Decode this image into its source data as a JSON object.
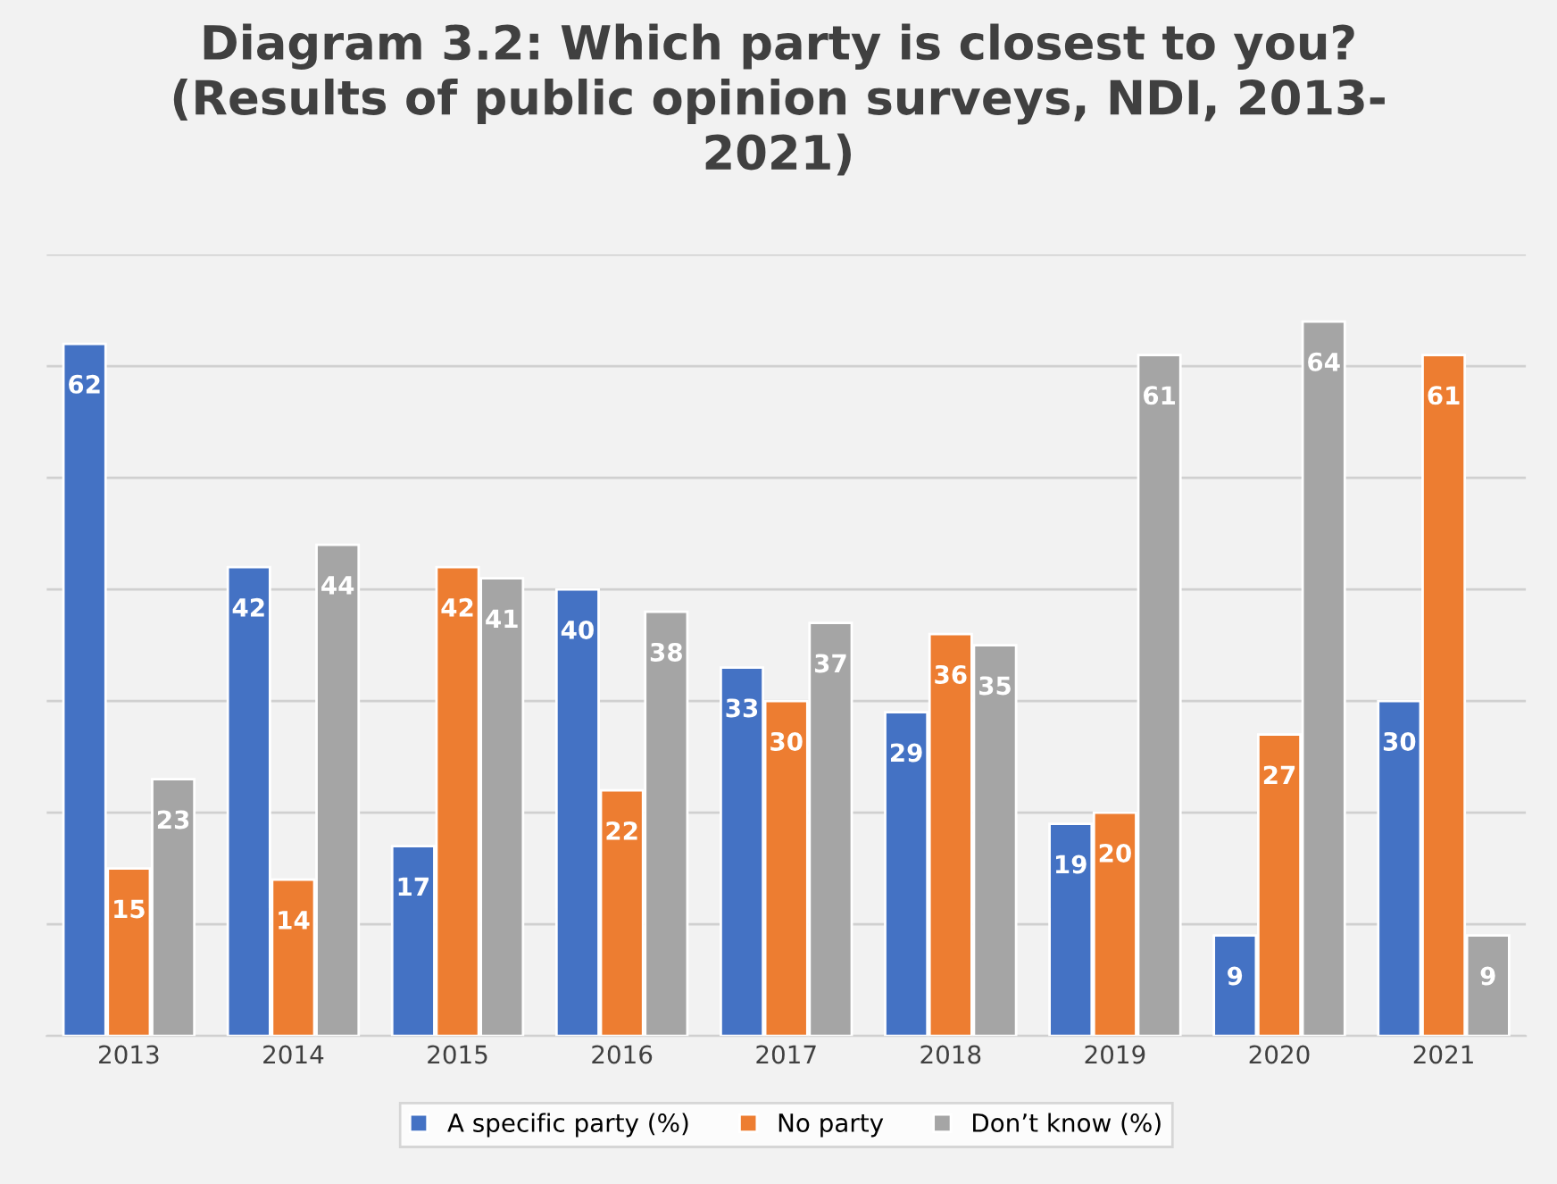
{
  "chart_data": {
    "type": "bar",
    "title": "Diagram 3.2: Which party is closest to you?\n(Results of public opinion surveys, NDI, 2013-\n2021)",
    "categories": [
      "2013",
      "2014",
      "2015",
      "2016",
      "2017",
      "2018",
      "2019",
      "2020",
      "2021"
    ],
    "series": [
      {
        "name": "A specific party (%)",
        "color": "#4472c4",
        "values": [
          62,
          42,
          17,
          40,
          33,
          29,
          19,
          9,
          30
        ]
      },
      {
        "name": "No party",
        "color": "#ed7d31",
        "values": [
          15,
          14,
          42,
          22,
          30,
          36,
          20,
          27,
          61
        ]
      },
      {
        "name": "Don’t know (%)",
        "color": "#a5a5a5",
        "values": [
          23,
          44,
          41,
          38,
          37,
          35,
          61,
          64,
          9
        ]
      }
    ],
    "ylim": [
      0,
      70
    ],
    "yticks": [
      {
        "value": 0,
        "label": null
      },
      {
        "value": 10,
        "label": null
      },
      {
        "value": 20,
        "label": null
      },
      {
        "value": 30,
        "label": null
      },
      {
        "value": 40,
        "label": null
      },
      {
        "value": 50,
        "label": null
      },
      {
        "value": 60,
        "label": null
      },
      {
        "value": 70,
        "label": null
      }
    ],
    "grid": "y",
    "tick_labels": "x",
    "legend": "bottom",
    "data_labels": true
  }
}
